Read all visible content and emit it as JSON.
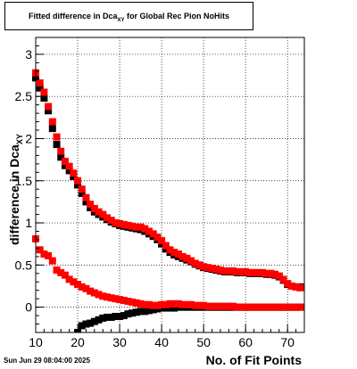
{
  "header": {
    "title_main": "Fitted difference in Dca",
    "title_sub": "XY",
    "title_rest": " for Global Rec Pion NoHits"
  },
  "footer": {
    "timestamp": "Sun Jun 29 08:04:00 2025"
  },
  "chart_data": {
    "type": "scatter",
    "title": "Fitted difference in Dca_XY for Global Rec Pion NoHits",
    "xlabel": "No. of Fit Points",
    "ylabel_main": "difference in Dca",
    "ylabel_sub": "XY",
    "xlim": [
      10,
      74
    ],
    "ylim": [
      -0.3,
      3.2
    ],
    "x_ticks": [
      10,
      20,
      30,
      40,
      50,
      60,
      70
    ],
    "y_ticks": [
      0,
      0.5,
      1,
      1.5,
      2,
      2.5,
      3
    ],
    "y_tick_labels": [
      "0",
      "0.5",
      "1",
      "1.5",
      "2",
      "2.5",
      "3"
    ],
    "grid": true,
    "series": [
      {
        "color": "#000000",
        "x": [
          10,
          11,
          12,
          13,
          14,
          15,
          16,
          17,
          18,
          19,
          20,
          21,
          22,
          23,
          24,
          25,
          26,
          27,
          28,
          29,
          30,
          31,
          32,
          33,
          34,
          35,
          36,
          37,
          38,
          39,
          40,
          41,
          42,
          43,
          44,
          45,
          46,
          47,
          48,
          49,
          50,
          51,
          52,
          53,
          54,
          55,
          56,
          57,
          58,
          59,
          60,
          61,
          62,
          63,
          64,
          65,
          66,
          67,
          68,
          69,
          70,
          71,
          72,
          73
        ],
        "y": [
          2.72,
          2.6,
          2.48,
          2.33,
          2.12,
          1.93,
          1.78,
          1.68,
          1.62,
          1.55,
          1.45,
          1.35,
          1.25,
          1.18,
          1.13,
          1.1,
          1.07,
          1.04,
          1.01,
          0.99,
          0.97,
          0.96,
          0.95,
          0.94,
          0.93,
          0.92,
          0.9,
          0.87,
          0.84,
          0.8,
          0.75,
          0.69,
          0.65,
          0.62,
          0.6,
          0.58,
          0.56,
          0.54,
          0.51,
          0.49,
          0.47,
          0.46,
          0.45,
          0.44,
          0.43,
          0.42,
          0.42,
          0.42,
          0.41,
          0.41,
          0.41,
          0.4,
          0.4,
          0.4,
          0.4,
          0.39,
          0.39,
          0.38,
          0.36,
          0.32,
          0.27,
          0.25,
          0.24,
          0.24
        ],
        "y_secondary_x": [
          20,
          21,
          22,
          23,
          24,
          25,
          26,
          27,
          28,
          29,
          30,
          31,
          32,
          33,
          34,
          35,
          36,
          37,
          38,
          39,
          40,
          41,
          42,
          43,
          44,
          45,
          46,
          47,
          48,
          49,
          50,
          51,
          52,
          53,
          54,
          55,
          56,
          57,
          58,
          59,
          60,
          61,
          62,
          63,
          64,
          65,
          66,
          67,
          68,
          69,
          70,
          71,
          72,
          73
        ],
        "y_secondary": [
          -0.3,
          -0.22,
          -0.2,
          -0.19,
          -0.17,
          -0.15,
          -0.13,
          -0.12,
          -0.12,
          -0.11,
          -0.11,
          -0.1,
          -0.08,
          -0.07,
          -0.06,
          -0.05,
          -0.05,
          -0.04,
          -0.03,
          -0.02,
          -0.01,
          -0.01,
          -0.01,
          -0.01,
          0.0,
          0.0,
          0.0,
          0.0,
          0.0,
          0.0,
          0.0,
          0.0,
          0.0,
          0.0,
          0.0,
          0.0,
          0.0,
          0.0,
          0.0,
          0.0,
          0.0,
          0.0,
          0.0,
          0.0,
          0.0,
          0.0,
          0.0,
          0.0,
          0.0,
          0.0,
          0.0,
          0.0,
          0.0,
          0.0
        ]
      },
      {
        "color": "#ff0000",
        "x": [
          10,
          11,
          12,
          13,
          14,
          15,
          16,
          17,
          18,
          19,
          20,
          21,
          22,
          23,
          24,
          25,
          26,
          27,
          28,
          29,
          30,
          31,
          32,
          33,
          34,
          35,
          36,
          37,
          38,
          39,
          40,
          41,
          42,
          43,
          44,
          45,
          46,
          47,
          48,
          49,
          50,
          51,
          52,
          53,
          54,
          55,
          56,
          57,
          58,
          59,
          60,
          61,
          62,
          63,
          64,
          65,
          66,
          67,
          68,
          69,
          70,
          71,
          72,
          73
        ],
        "y": [
          2.78,
          2.66,
          2.55,
          2.38,
          2.2,
          2.02,
          1.85,
          1.73,
          1.67,
          1.59,
          1.5,
          1.4,
          1.3,
          1.22,
          1.17,
          1.13,
          1.1,
          1.06,
          1.03,
          1.0,
          0.99,
          0.98,
          0.97,
          0.96,
          0.95,
          0.95,
          0.93,
          0.9,
          0.87,
          0.83,
          0.79,
          0.73,
          0.68,
          0.65,
          0.63,
          0.6,
          0.58,
          0.55,
          0.52,
          0.5,
          0.48,
          0.47,
          0.46,
          0.45,
          0.44,
          0.43,
          0.43,
          0.43,
          0.42,
          0.42,
          0.42,
          0.41,
          0.41,
          0.41,
          0.41,
          0.4,
          0.4,
          0.39,
          0.37,
          0.33,
          0.28,
          0.25,
          0.24,
          0.23
        ],
        "y_secondary_x": [
          10,
          11,
          12,
          13,
          14,
          15,
          16,
          17,
          18,
          19,
          20,
          21,
          22,
          23,
          24,
          25,
          26,
          27,
          28,
          29,
          30,
          31,
          32,
          33,
          34,
          35,
          36,
          37,
          38,
          39,
          40,
          41,
          42,
          43,
          44,
          45,
          46,
          47,
          48,
          49,
          50,
          51,
          52,
          53,
          54,
          55,
          56,
          57,
          58,
          59,
          60,
          61,
          62,
          63,
          64,
          65,
          66,
          67,
          68,
          69,
          70,
          71,
          72,
          73
        ],
        "y_secondary": [
          0.81,
          0.68,
          0.63,
          0.61,
          0.55,
          0.44,
          0.41,
          0.38,
          0.33,
          0.3,
          0.27,
          0.24,
          0.22,
          0.19,
          0.17,
          0.15,
          0.13,
          0.12,
          0.11,
          0.1,
          0.09,
          0.08,
          0.07,
          0.06,
          0.05,
          0.04,
          0.03,
          0.03,
          0.02,
          0.02,
          0.03,
          0.03,
          0.04,
          0.04,
          0.04,
          0.03,
          0.03,
          0.03,
          0.02,
          0.02,
          0.02,
          0.01,
          0.01,
          0.01,
          0.01,
          0.01,
          0.01,
          0.01,
          0.0,
          0.0,
          0.0,
          0.0,
          0.0,
          0.0,
          0.0,
          0.0,
          0.0,
          0.0,
          0.0,
          0.0,
          0.0,
          0.0,
          0.0,
          0.0
        ]
      }
    ]
  }
}
